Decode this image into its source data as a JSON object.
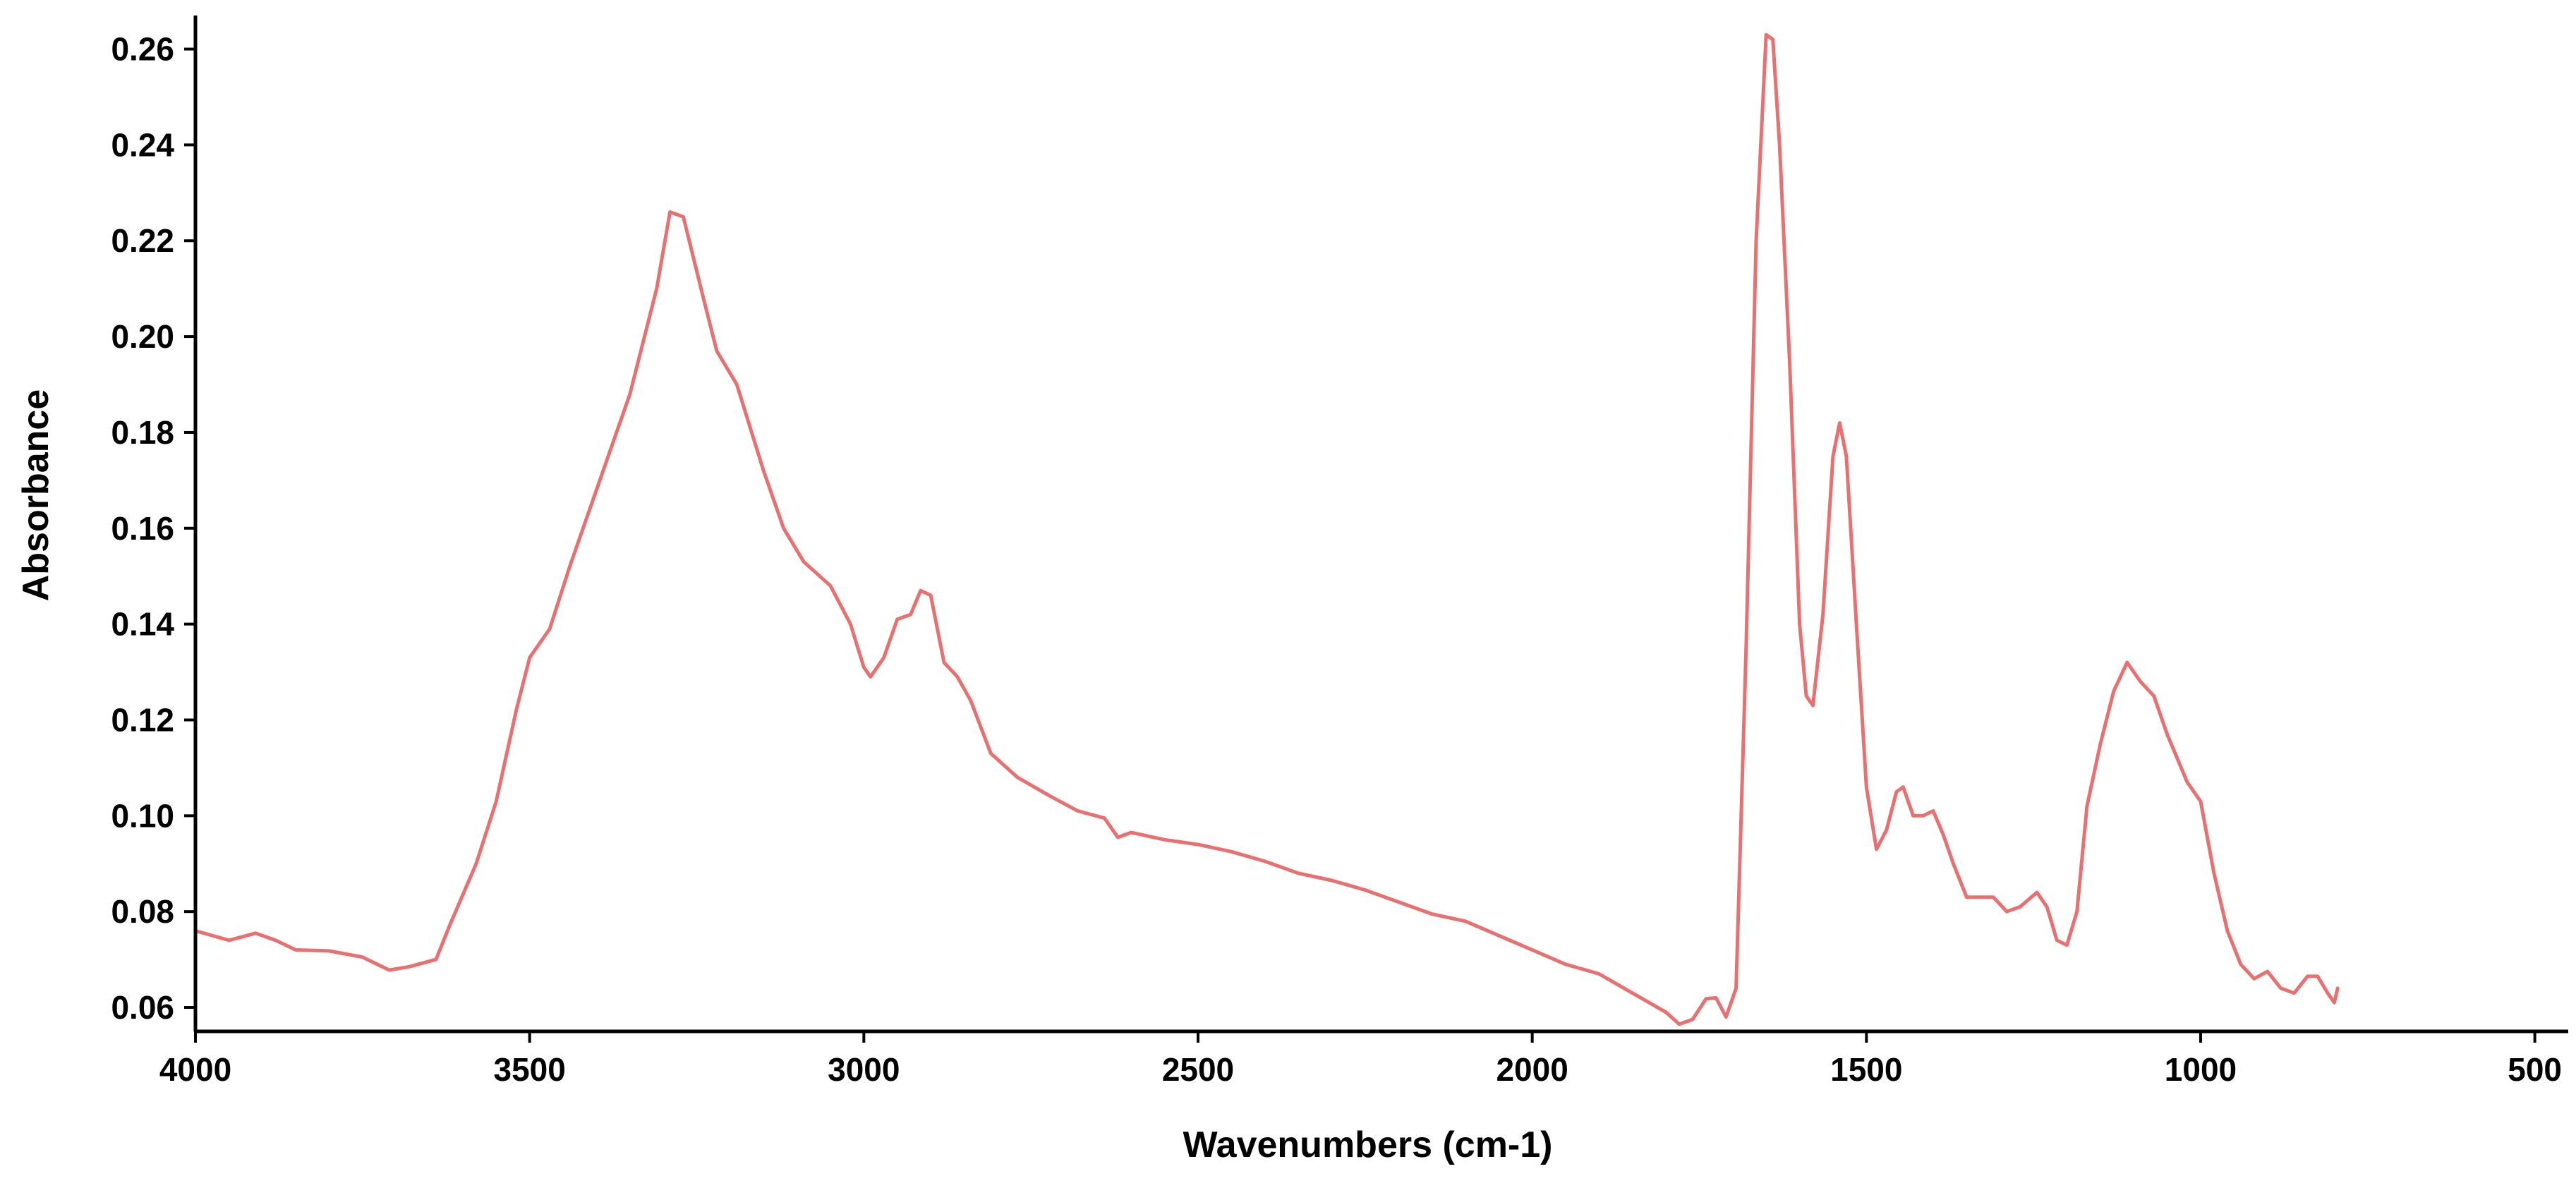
{
  "chart_data": {
    "type": "line",
    "title": "",
    "xlabel": "Wavenumbers (cm-1)",
    "ylabel": "Absorbance",
    "xlim": [
      4000,
      450
    ],
    "ylim": [
      0.055,
      0.267
    ],
    "x_reversed": true,
    "grid": false,
    "legend": "none",
    "x_ticks": [
      4000,
      3500,
      3000,
      2500,
      2000,
      1500,
      1000,
      500
    ],
    "x_tick_labels": [
      "4000",
      "3500",
      "3000",
      "2500",
      "2000",
      "1500",
      "1000",
      "500"
    ],
    "y_ticks": [
      0.06,
      0.08,
      0.1,
      0.12,
      0.14,
      0.16,
      0.18,
      0.2,
      0.22,
      0.24,
      0.26
    ],
    "y_tick_labels": [
      "0.06",
      "0.08",
      "0.10",
      "0.12",
      "0.14",
      "0.16",
      "0.18",
      "0.20",
      "0.22",
      "0.24",
      "0.26"
    ],
    "series": [
      {
        "color": "#e87070",
        "points": [
          [
            4000,
            0.076
          ],
          [
            3950,
            0.074
          ],
          [
            3910,
            0.0755
          ],
          [
            3880,
            0.074
          ],
          [
            3850,
            0.072
          ],
          [
            3800,
            0.0718
          ],
          [
            3750,
            0.0705
          ],
          [
            3710,
            0.0678
          ],
          [
            3680,
            0.0685
          ],
          [
            3640,
            0.07
          ],
          [
            3620,
            0.077
          ],
          [
            3580,
            0.09
          ],
          [
            3550,
            0.103
          ],
          [
            3520,
            0.122
          ],
          [
            3500,
            0.133
          ],
          [
            3470,
            0.139
          ],
          [
            3440,
            0.152
          ],
          [
            3400,
            0.168
          ],
          [
            3350,
            0.188
          ],
          [
            3310,
            0.21
          ],
          [
            3290,
            0.226
          ],
          [
            3270,
            0.225
          ],
          [
            3240,
            0.208
          ],
          [
            3220,
            0.197
          ],
          [
            3190,
            0.19
          ],
          [
            3150,
            0.172
          ],
          [
            3120,
            0.16
          ],
          [
            3090,
            0.153
          ],
          [
            3050,
            0.148
          ],
          [
            3020,
            0.14
          ],
          [
            3000,
            0.131
          ],
          [
            2990,
            0.129
          ],
          [
            2970,
            0.133
          ],
          [
            2950,
            0.141
          ],
          [
            2930,
            0.142
          ],
          [
            2915,
            0.147
          ],
          [
            2900,
            0.146
          ],
          [
            2880,
            0.132
          ],
          [
            2860,
            0.129
          ],
          [
            2840,
            0.124
          ],
          [
            2810,
            0.113
          ],
          [
            2770,
            0.108
          ],
          [
            2720,
            0.104
          ],
          [
            2680,
            0.101
          ],
          [
            2640,
            0.0995
          ],
          [
            2620,
            0.0955
          ],
          [
            2600,
            0.0965
          ],
          [
            2550,
            0.095
          ],
          [
            2500,
            0.094
          ],
          [
            2450,
            0.0925
          ],
          [
            2400,
            0.0905
          ],
          [
            2350,
            0.088
          ],
          [
            2300,
            0.0865
          ],
          [
            2250,
            0.0845
          ],
          [
            2200,
            0.082
          ],
          [
            2150,
            0.0795
          ],
          [
            2100,
            0.078
          ],
          [
            2050,
            0.075
          ],
          [
            2000,
            0.072
          ],
          [
            1950,
            0.069
          ],
          [
            1900,
            0.067
          ],
          [
            1850,
            0.063
          ],
          [
            1800,
            0.059
          ],
          [
            1780,
            0.0565
          ],
          [
            1760,
            0.0575
          ],
          [
            1740,
            0.0618
          ],
          [
            1725,
            0.062
          ],
          [
            1710,
            0.058
          ],
          [
            1695,
            0.064
          ],
          [
            1680,
            0.135
          ],
          [
            1665,
            0.22
          ],
          [
            1650,
            0.263
          ],
          [
            1640,
            0.262
          ],
          [
            1630,
            0.24
          ],
          [
            1615,
            0.195
          ],
          [
            1600,
            0.14
          ],
          [
            1590,
            0.125
          ],
          [
            1580,
            0.123
          ],
          [
            1565,
            0.142
          ],
          [
            1550,
            0.175
          ],
          [
            1540,
            0.182
          ],
          [
            1530,
            0.175
          ],
          [
            1515,
            0.14
          ],
          [
            1500,
            0.106
          ],
          [
            1485,
            0.093
          ],
          [
            1470,
            0.097
          ],
          [
            1455,
            0.105
          ],
          [
            1445,
            0.106
          ],
          [
            1430,
            0.1
          ],
          [
            1415,
            0.1
          ],
          [
            1400,
            0.101
          ],
          [
            1385,
            0.096
          ],
          [
            1370,
            0.09
          ],
          [
            1350,
            0.083
          ],
          [
            1330,
            0.083
          ],
          [
            1310,
            0.083
          ],
          [
            1290,
            0.08
          ],
          [
            1270,
            0.081
          ],
          [
            1245,
            0.084
          ],
          [
            1230,
            0.081
          ],
          [
            1215,
            0.074
          ],
          [
            1200,
            0.073
          ],
          [
            1185,
            0.08
          ],
          [
            1170,
            0.102
          ],
          [
            1150,
            0.115
          ],
          [
            1130,
            0.126
          ],
          [
            1110,
            0.132
          ],
          [
            1090,
            0.128
          ],
          [
            1070,
            0.125
          ],
          [
            1050,
            0.117
          ],
          [
            1020,
            0.107
          ],
          [
            1000,
            0.103
          ],
          [
            980,
            0.088
          ],
          [
            960,
            0.076
          ],
          [
            940,
            0.069
          ],
          [
            920,
            0.066
          ],
          [
            900,
            0.0675
          ],
          [
            880,
            0.064
          ],
          [
            860,
            0.063
          ],
          [
            840,
            0.0665
          ],
          [
            825,
            0.0665
          ],
          [
            810,
            0.063
          ],
          [
            800,
            0.061
          ],
          [
            795,
            0.064
          ]
        ]
      }
    ]
  }
}
